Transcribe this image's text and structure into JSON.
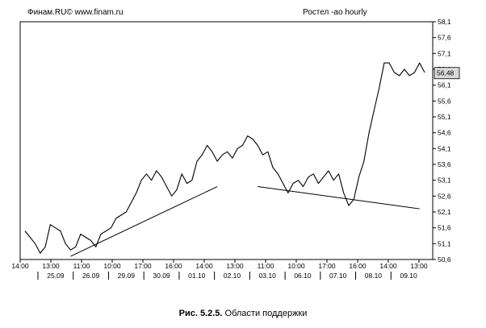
{
  "header": {
    "source": "Финам.RU© www.finam.ru",
    "ticker": "Ростел -ао hourly"
  },
  "caption": {
    "number": "Рис. 5.2.5.",
    "text": "Области поддержки"
  },
  "chart_data": {
    "type": "line",
    "title": "Ростел -ао hourly",
    "ylim": [
      50.6,
      58.1
    ],
    "y_ticks": [
      "58,1",
      "57,6",
      "57,1",
      "56,6",
      "56,1",
      "55,6",
      "55,1",
      "54,6",
      "54,1",
      "53,6",
      "53,1",
      "52,6",
      "52,1",
      "51,6",
      "51,1",
      "50,6"
    ],
    "time_ticks": [
      "14:00",
      "13:00",
      "11:00",
      "10:00",
      "17:00",
      "16:00",
      "14:00",
      "13:00",
      "11:00",
      "10:00",
      "17:00",
      "16:00",
      "14:00",
      "13:00"
    ],
    "date_labels": [
      "25.09",
      "26.09",
      "29.09",
      "30.09",
      "01.10",
      "02.10",
      "03.10",
      "06.10",
      "07.10",
      "08.10",
      "09.10"
    ],
    "last_value_label": "56,48",
    "grid": false,
    "series": [
      {
        "values": [
          51.5,
          51.3,
          51.1,
          50.8,
          51.0,
          51.7,
          51.6,
          51.5,
          51.1,
          50.9,
          51.0,
          51.4,
          51.3,
          51.2,
          51.0,
          51.4,
          51.5,
          51.6,
          51.9,
          52.0,
          52.1,
          52.4,
          52.7,
          53.1,
          53.3,
          53.1,
          53.4,
          53.2,
          52.9,
          52.6,
          52.8,
          53.3,
          53.0,
          53.1,
          53.7,
          53.9,
          54.2,
          54.0,
          53.7,
          53.9,
          54.0,
          53.8,
          54.1,
          54.2,
          54.5,
          54.4,
          54.2,
          53.9,
          54.0,
          53.5,
          53.3,
          53.0,
          52.7,
          53.0,
          53.1,
          52.9,
          53.2,
          53.3,
          53.0,
          53.2,
          53.4,
          53.1,
          53.3,
          52.7,
          52.3,
          52.5,
          53.2,
          53.7,
          54.6,
          55.3,
          56.0,
          56.8,
          56.8,
          56.5,
          56.4,
          56.6,
          56.4,
          56.5,
          56.8,
          56.5
        ]
      }
    ],
    "annotations": [
      {
        "type": "support-line",
        "from": [
          9,
          50.7
        ],
        "to": [
          38,
          52.9
        ]
      },
      {
        "type": "trend-line",
        "from": [
          46,
          52.9
        ],
        "to": [
          78,
          52.2
        ]
      }
    ]
  }
}
